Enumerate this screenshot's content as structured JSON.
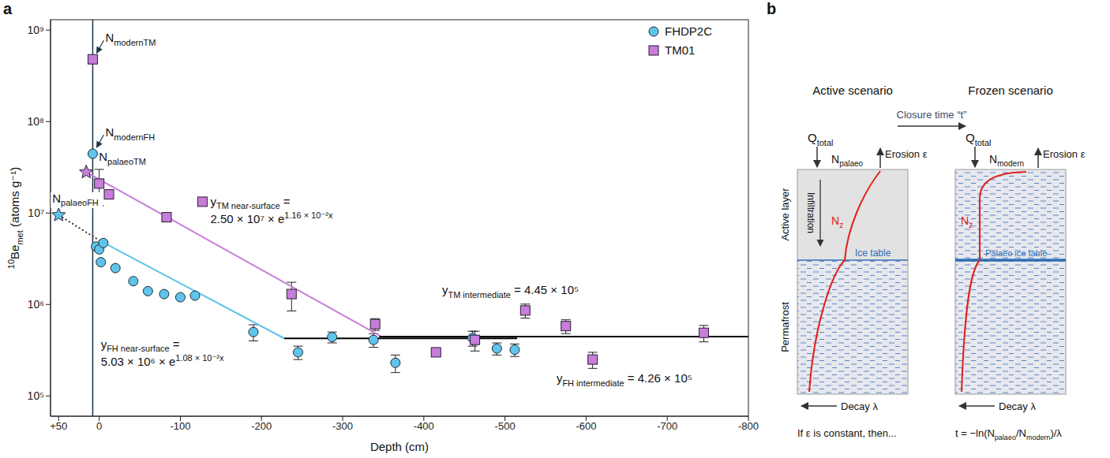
{
  "chart_data": {
    "type": "scatter",
    "panel_label": "a",
    "x_label": "Depth (cm)",
    "y_label": {
      "pre_sup": "10",
      "main": "Be",
      "sub": "met",
      "rest": " (atoms g⁻¹)"
    },
    "log": "y",
    "xlim": [
      60,
      -800
    ],
    "xticks": [
      {
        "value": 50,
        "label": "+50"
      },
      0,
      -100,
      -200,
      -300,
      -400,
      -500,
      -600,
      -700,
      -800
    ],
    "ylim": [
      60000,
      1300000000
    ],
    "yticks": [
      {
        "value": 100000,
        "label": "10⁵"
      },
      {
        "value": 1000000,
        "label": "10⁶"
      },
      {
        "value": 10000000,
        "label": "10⁷"
      },
      {
        "value": 100000000,
        "label": "10⁸"
      },
      {
        "value": 1000000000,
        "label": "10⁹"
      }
    ],
    "legend": "upper right",
    "vline_x": 8,
    "series": [
      {
        "name": "FHDP2C",
        "color": "#5ec4ea",
        "marker": "circle",
        "x": [
          8,
          4,
          0,
          -2,
          -5,
          -20,
          -42,
          -60,
          -80,
          -100,
          -118,
          -190,
          -245,
          -287,
          -338,
          -365,
          -460,
          -490,
          -512
        ],
        "values": [
          44500000,
          4300000,
          4000000,
          2900000,
          4700000,
          2500000,
          1800000,
          1400000,
          1300000,
          1200000,
          1250000,
          500000,
          300000,
          440000,
          410000,
          230000,
          430000,
          330000,
          320000
        ],
        "errors": [
          null,
          null,
          null,
          null,
          null,
          null,
          null,
          null,
          null,
          null,
          null,
          100000,
          50000,
          60000,
          70000,
          50000,
          80000,
          50000,
          50000
        ],
        "point_labels": [
          {
            "main": "N",
            "sub": "modernFH"
          },
          null,
          null,
          null,
          null,
          null,
          null,
          null,
          null,
          null,
          null,
          null,
          null,
          null,
          null,
          null,
          null,
          null,
          null
        ]
      },
      {
        "name": "TM01",
        "color": "#c77dd9",
        "marker": "square",
        "x": [
          8,
          0,
          -12,
          -83,
          -237,
          -340,
          -415,
          -463,
          -525,
          -575,
          -608,
          -745
        ],
        "values": [
          480000000,
          21000000,
          16000000,
          9000000,
          1300000,
          610000,
          300000,
          410000,
          860000,
          580000,
          250000,
          490000
        ],
        "errors": [
          null,
          9000000,
          null,
          1000000,
          450000,
          90000,
          null,
          100000,
          150000,
          100000,
          50000,
          100000
        ],
        "point_labels": [
          {
            "main": "N",
            "sub": "modernTM"
          },
          null,
          null,
          null,
          null,
          null,
          null,
          null,
          null,
          null,
          null,
          null
        ]
      }
    ],
    "reference_points": [
      {
        "label": {
          "main": "N",
          "sub": "palaeoTM"
        },
        "x": 16,
        "y": 28000000,
        "color": "#c77dd9",
        "marker": "star"
      },
      {
        "label": {
          "main": "N",
          "sub": "palaeoFH"
        },
        "x": 50,
        "y": 9500000,
        "color": "#5ec4ea",
        "marker": "star"
      }
    ],
    "lines": [
      {
        "x": [
          16,
          -348
        ],
        "values": [
          28000000,
          445000
        ],
        "color": "#c77dd9",
        "line_style": "solid",
        "equation": {
          "main": "y",
          "sub": "TM near-surface",
          "eq": " =",
          "rhs": "2.50 × 10⁷ × e",
          "sup": "1.16 × 10⁻²x"
        }
      },
      {
        "x": [
          50,
          0
        ],
        "values": [
          9500000,
          5030000
        ],
        "color": "#333333",
        "line_style": "dotted"
      },
      {
        "x": [
          0,
          -228
        ],
        "values": [
          5030000,
          426000
        ],
        "color": "#5ec4ea",
        "line_style": "solid",
        "equation": {
          "main": "y",
          "sub": "FH near-surface",
          "eq": " =",
          "rhs": "5.03 × 10⁶ × e",
          "sup": "1.08 × 10⁻²x"
        }
      },
      {
        "x": [
          -228,
          -515
        ],
        "values": [
          426000,
          426000
        ],
        "color": "#000000",
        "line_style": "solid",
        "equation": {
          "main": "y",
          "sub": "FH intermediate",
          "eq": " = 4.26 × 10⁵"
        }
      },
      {
        "x": [
          -345,
          -800
        ],
        "values": [
          445000,
          445000
        ],
        "color": "#000000",
        "line_style": "solid",
        "equation": {
          "main": "y",
          "sub": "TM intermediate",
          "eq": " = 4.45 × 10⁵"
        }
      }
    ]
  },
  "diagram": {
    "panel_label": "b",
    "layers": [
      "Active layer",
      "Permafrost"
    ],
    "transition": "Closure time “t”",
    "active": {
      "title": "Active scenario",
      "input": {
        "main": "Q",
        "sub": "total"
      },
      "surface": {
        "main": "N",
        "sub": "palaeo"
      },
      "erosion": "Erosion ε",
      "infiltration": "Infiltration",
      "profile": {
        "main": "N",
        "sub": "z"
      },
      "ice_table": "Ice table",
      "decay": "Decay λ",
      "note": "If ε is constant, then..."
    },
    "frozen": {
      "title": "Frozen scenario",
      "input": {
        "main": "Q",
        "sub": "total"
      },
      "surface": {
        "main": "N",
        "sub": "modern"
      },
      "erosion": "Erosion ε",
      "profile": {
        "main": "N",
        "sub": "z"
      },
      "ice_table": "Palaeo ice table",
      "decay": "Decay λ",
      "formula": [
        {
          "text": "t = −ln("
        },
        {
          "main": "N",
          "sub": "palaeo"
        },
        {
          "text": "/"
        },
        {
          "main": "N",
          "sub": "modern"
        },
        {
          "text": ")/λ"
        }
      ]
    }
  }
}
